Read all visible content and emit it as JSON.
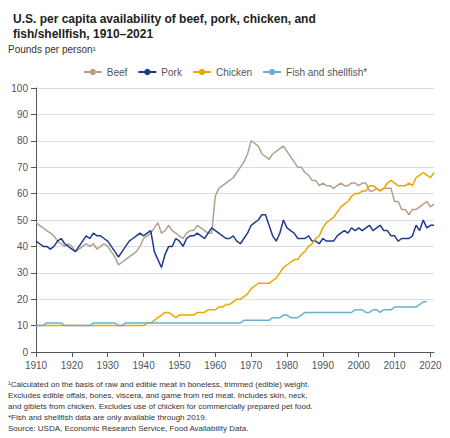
{
  "chart_data": {
    "type": "line",
    "title": "U.S. per capita availability of beef, pork, chicken, and\nfish/shellfish, 1910–2021",
    "y_label": "Pounds per person¹",
    "annotations": [
      "¹Calculated on the basis of raw and edible meat in boneless, trimmed (edible) weight.\nExcludes edible offals, bones, viscera, and game from red meat. Includes skin, neck,\nand giblets from chicken. Excludes use of chicken for commercially prepared pet food.\n*Fish and shellfish data are only available through 2019.\nSource: USDA, Economic Research Service, Food Availability Data."
    ],
    "xlim": [
      1910,
      2021
    ],
    "ylim": [
      0,
      100
    ],
    "xticks": [
      1910,
      1920,
      1930,
      1940,
      1950,
      1960,
      1970,
      1980,
      1990,
      2000,
      2010,
      2020
    ],
    "yticks": [
      0,
      10,
      20,
      30,
      40,
      50,
      60,
      70,
      80,
      90,
      100
    ],
    "grid": true,
    "legend": "upper center",
    "series": [
      {
        "name": "Beef",
        "color": "#b5a08c",
        "x": [
          1910,
          1911,
          1912,
          1913,
          1914,
          1915,
          1916,
          1917,
          1918,
          1919,
          1920,
          1921,
          1922,
          1923,
          1924,
          1925,
          1926,
          1927,
          1928,
          1929,
          1930,
          1931,
          1932,
          1933,
          1934,
          1935,
          1936,
          1937,
          1938,
          1939,
          1940,
          1941,
          1942,
          1943,
          1944,
          1945,
          1946,
          1947,
          1948,
          1949,
          1950,
          1951,
          1952,
          1953,
          1954,
          1955,
          1956,
          1957,
          1958,
          1959,
          1960,
          1961,
          1962,
          1963,
          1964,
          1965,
          1966,
          1967,
          1968,
          1969,
          1970,
          1971,
          1972,
          1973,
          1974,
          1975,
          1976,
          1977,
          1978,
          1979,
          1980,
          1981,
          1982,
          1983,
          1984,
          1985,
          1986,
          1987,
          1988,
          1989,
          1990,
          1991,
          1992,
          1993,
          1994,
          1995,
          1996,
          1997,
          1998,
          1999,
          2000,
          2001,
          2002,
          2003,
          2004,
          2005,
          2006,
          2007,
          2008,
          2009,
          2010,
          2011,
          2012,
          2013,
          2014,
          2015,
          2016,
          2017,
          2018,
          2019,
          2020,
          2021
        ],
        "values": [
          49,
          48,
          47,
          46,
          45,
          44,
          42,
          41,
          40,
          41,
          40,
          38,
          39,
          40,
          41,
          40,
          41,
          39,
          40,
          41,
          40,
          38,
          36,
          33,
          34,
          35,
          36,
          37,
          38,
          40,
          43,
          44,
          45,
          47,
          49,
          45,
          46,
          48,
          46,
          45,
          44,
          43,
          45,
          46,
          46,
          48,
          47,
          46,
          45,
          45,
          59,
          62,
          63,
          64,
          65,
          66,
          68,
          70,
          72,
          75,
          80,
          79,
          78,
          75,
          74,
          73,
          75,
          76,
          77,
          78,
          76,
          74,
          72,
          70,
          70,
          68,
          67,
          65,
          65,
          63,
          64,
          63,
          63,
          62,
          63,
          64,
          63,
          63,
          64,
          64,
          63,
          64,
          64,
          61,
          61,
          62,
          61,
          62,
          62,
          62,
          57,
          57,
          54,
          54,
          52,
          54,
          54,
          55,
          56,
          57,
          55,
          56
        ]
      },
      {
        "name": "Pork",
        "color": "#1f3b8c",
        "x": [
          1910,
          1911,
          1912,
          1913,
          1914,
          1915,
          1916,
          1917,
          1918,
          1919,
          1920,
          1921,
          1922,
          1923,
          1924,
          1925,
          1926,
          1927,
          1928,
          1929,
          1930,
          1931,
          1932,
          1933,
          1934,
          1935,
          1936,
          1937,
          1938,
          1939,
          1940,
          1941,
          1942,
          1943,
          1944,
          1945,
          1946,
          1947,
          1948,
          1949,
          1950,
          1951,
          1952,
          1953,
          1954,
          1955,
          1956,
          1957,
          1958,
          1959,
          1960,
          1961,
          1962,
          1963,
          1964,
          1965,
          1966,
          1967,
          1968,
          1969,
          1970,
          1971,
          1972,
          1973,
          1974,
          1975,
          1976,
          1977,
          1978,
          1979,
          1980,
          1981,
          1982,
          1983,
          1984,
          1985,
          1986,
          1987,
          1988,
          1989,
          1990,
          1991,
          1992,
          1993,
          1994,
          1995,
          1996,
          1997,
          1998,
          1999,
          2000,
          2001,
          2002,
          2003,
          2004,
          2005,
          2006,
          2007,
          2008,
          2009,
          2010,
          2011,
          2012,
          2013,
          2014,
          2015,
          2016,
          2017,
          2018,
          2019,
          2020,
          2021
        ],
        "values": [
          42,
          41,
          40,
          40,
          39,
          40,
          42,
          43,
          41,
          40,
          39,
          38,
          40,
          42,
          44,
          43,
          45,
          44,
          44,
          43,
          42,
          40,
          38,
          36,
          38,
          40,
          42,
          43,
          44,
          45,
          44,
          45,
          46,
          38,
          35,
          32,
          37,
          40,
          40,
          43,
          42,
          40,
          43,
          44,
          44,
          45,
          44,
          43,
          45,
          47,
          46,
          45,
          44,
          43,
          43,
          44,
          42,
          41,
          43,
          45,
          48,
          49,
          50,
          52,
          52,
          48,
          44,
          42,
          45,
          50,
          47,
          46,
          45,
          43,
          43,
          43,
          44,
          42,
          42,
          41,
          43,
          42,
          42,
          42,
          44,
          45,
          46,
          45,
          47,
          46,
          47,
          46,
          47,
          48,
          46,
          47,
          48,
          46,
          46,
          44,
          44,
          42,
          43,
          43,
          43,
          44,
          48,
          46,
          50,
          47,
          48,
          48
        ]
      },
      {
        "name": "Chicken",
        "color": "#e8a800",
        "x": [
          1910,
          1911,
          1912,
          1913,
          1914,
          1915,
          1916,
          1917,
          1918,
          1919,
          1920,
          1921,
          1922,
          1923,
          1924,
          1925,
          1926,
          1927,
          1928,
          1929,
          1930,
          1931,
          1932,
          1933,
          1934,
          1935,
          1936,
          1937,
          1938,
          1939,
          1940,
          1941,
          1942,
          1943,
          1944,
          1945,
          1946,
          1947,
          1948,
          1949,
          1950,
          1951,
          1952,
          1953,
          1954,
          1955,
          1956,
          1957,
          1958,
          1959,
          1960,
          1961,
          1962,
          1963,
          1964,
          1965,
          1966,
          1967,
          1968,
          1969,
          1970,
          1971,
          1972,
          1973,
          1974,
          1975,
          1976,
          1977,
          1978,
          1979,
          1980,
          1981,
          1982,
          1983,
          1984,
          1985,
          1986,
          1987,
          1988,
          1989,
          1990,
          1991,
          1992,
          1993,
          1994,
          1995,
          1996,
          1997,
          1998,
          1999,
          2000,
          2001,
          2002,
          2003,
          2004,
          2005,
          2006,
          2007,
          2008,
          2009,
          2010,
          2011,
          2012,
          2013,
          2014,
          2015,
          2016,
          2017,
          2018,
          2019,
          2020,
          2021
        ],
        "values": [
          10,
          10,
          10,
          10,
          10,
          10,
          10,
          10,
          10,
          10,
          10,
          10,
          10,
          10,
          10,
          10,
          10,
          10,
          10,
          10,
          10,
          10,
          10,
          10,
          10,
          10,
          10,
          10,
          10,
          10,
          10,
          11,
          11,
          12,
          13,
          14,
          15,
          15,
          14,
          13,
          14,
          14,
          14,
          14,
          14,
          15,
          15,
          15,
          16,
          16,
          16,
          17,
          17,
          18,
          18,
          19,
          20,
          20,
          21,
          22,
          24,
          25,
          26,
          26,
          26,
          26,
          27,
          28,
          30,
          32,
          33,
          34,
          35,
          35,
          37,
          38,
          40,
          41,
          43,
          44,
          47,
          49,
          50,
          51,
          53,
          55,
          56,
          57,
          59,
          60,
          60,
          61,
          61,
          63,
          63,
          62,
          61,
          62,
          64,
          65,
          64,
          63,
          63,
          63,
          64,
          63,
          66,
          67,
          68,
          67,
          66,
          68
        ]
      },
      {
        "name": "Fish and shellfish*",
        "color": "#6ab0d4",
        "x": [
          1910,
          1911,
          1912,
          1913,
          1914,
          1915,
          1916,
          1917,
          1918,
          1919,
          1920,
          1921,
          1922,
          1923,
          1924,
          1925,
          1926,
          1927,
          1928,
          1929,
          1930,
          1931,
          1932,
          1933,
          1934,
          1935,
          1936,
          1937,
          1938,
          1939,
          1940,
          1941,
          1942,
          1943,
          1944,
          1945,
          1946,
          1947,
          1948,
          1949,
          1950,
          1951,
          1952,
          1953,
          1954,
          1955,
          1956,
          1957,
          1958,
          1959,
          1960,
          1961,
          1962,
          1963,
          1964,
          1965,
          1966,
          1967,
          1968,
          1969,
          1970,
          1971,
          1972,
          1973,
          1974,
          1975,
          1976,
          1977,
          1978,
          1979,
          1980,
          1981,
          1982,
          1983,
          1984,
          1985,
          1986,
          1987,
          1988,
          1989,
          1990,
          1991,
          1992,
          1993,
          1994,
          1995,
          1996,
          1997,
          1998,
          1999,
          2000,
          2001,
          2002,
          2003,
          2004,
          2005,
          2006,
          2007,
          2008,
          2009,
          2010,
          2011,
          2012,
          2013,
          2014,
          2015,
          2016,
          2017,
          2018,
          2019
        ],
        "values": [
          10,
          10,
          10,
          11,
          11,
          11,
          11,
          11,
          10,
          10,
          10,
          10,
          10,
          10,
          10,
          10,
          11,
          11,
          11,
          11,
          11,
          11,
          11,
          10,
          10,
          11,
          11,
          11,
          11,
          11,
          11,
          11,
          11,
          11,
          11,
          11,
          11,
          11,
          11,
          11,
          11,
          11,
          11,
          11,
          11,
          11,
          11,
          11,
          11,
          11,
          11,
          11,
          11,
          11,
          11,
          11,
          11,
          11,
          12,
          12,
          12,
          12,
          12,
          12,
          12,
          12,
          13,
          13,
          13,
          14,
          14,
          13,
          13,
          13,
          14,
          15,
          15,
          15,
          15,
          15,
          15,
          15,
          15,
          15,
          15,
          15,
          15,
          15,
          15,
          16,
          16,
          16,
          15,
          15,
          16,
          16,
          15,
          16,
          16,
          16,
          17,
          17,
          17,
          17,
          17,
          17,
          17,
          18,
          19,
          19
        ]
      }
    ]
  }
}
